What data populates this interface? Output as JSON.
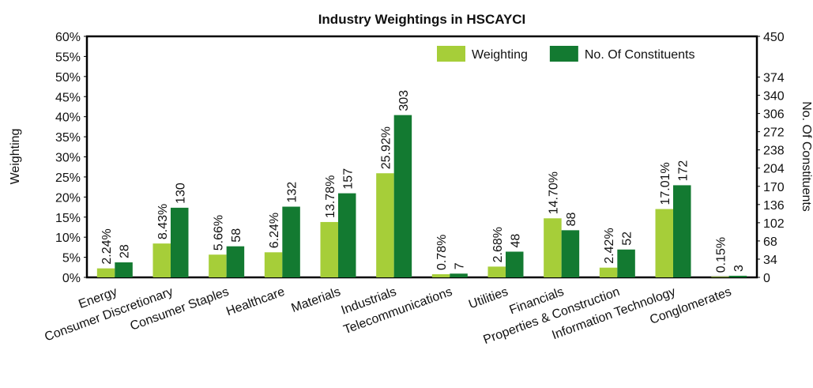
{
  "chart_data": {
    "type": "bar",
    "title": "Industry Weightings in HSCAYCI",
    "y_label": "Weighting",
    "y2_label": "No. Of Constituents",
    "categories": [
      "Energy",
      "Consumer Discretionary",
      "Consumer Staples",
      "Healthcare",
      "Materials",
      "Industrials",
      "Telecommunications",
      "Utilities",
      "Financials",
      "Properties & Construction",
      "Information Technology",
      "Conglomerates"
    ],
    "series": [
      {
        "name": "Weighting",
        "color": "#a6ce39",
        "values": [
          2.24,
          8.43,
          5.66,
          6.24,
          13.78,
          25.92,
          0.78,
          2.68,
          14.7,
          2.42,
          17.01,
          0.15
        ],
        "value_labels": [
          "2.24%",
          "8.43%",
          "5.66%",
          "6.24%",
          "13.78%",
          "25.92%",
          "0.78%",
          "2.68%",
          "14.70%",
          "2.42%",
          "17.01%",
          "0.15%"
        ]
      },
      {
        "name": "No. Of Constituents",
        "color": "#137a31",
        "axis": "y2",
        "values": [
          28,
          130,
          58,
          132,
          157,
          303,
          7,
          48,
          88,
          52,
          172,
          3
        ]
      }
    ],
    "ylim": [
      0,
      60
    ],
    "yticks": [
      {
        "value": 0,
        "label": "0%"
      },
      {
        "value": 5,
        "label": "5%"
      },
      {
        "value": 10,
        "label": "10%"
      },
      {
        "value": 15,
        "label": "15%"
      },
      {
        "value": 20,
        "label": "20%"
      },
      {
        "value": 25,
        "label": "25%"
      },
      {
        "value": 30,
        "label": "30%"
      },
      {
        "value": 35,
        "label": "35%"
      },
      {
        "value": 40,
        "label": "40%"
      },
      {
        "value": 45,
        "label": "45%"
      },
      {
        "value": 50,
        "label": "50%"
      },
      {
        "value": 55,
        "label": "55%"
      },
      {
        "value": 60,
        "label": "60%"
      }
    ],
    "y2lim": [
      0,
      450
    ],
    "y2ticks": [
      0,
      34,
      68,
      102,
      136,
      170,
      204,
      238,
      272,
      306,
      340,
      374,
      450
    ],
    "legend": "upper right"
  }
}
